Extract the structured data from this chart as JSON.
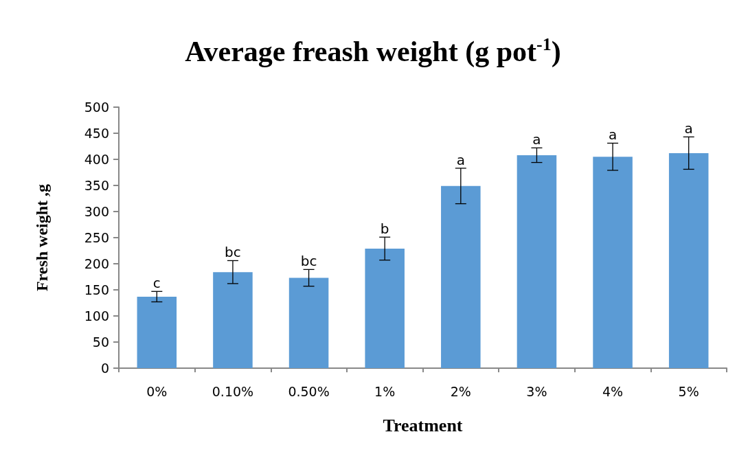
{
  "chart_data": {
    "type": "bar",
    "title": "Average freash weight (g pot$^{-1}$)",
    "xlabel": "Treatment",
    "ylabel": "Fresh weight ,g",
    "categories": [
      "0%",
      "0.10%",
      "0.50%",
      "1%",
      "2%",
      "3%",
      "4%",
      "5%"
    ],
    "values": [
      137,
      184,
      173,
      229,
      349,
      408,
      405,
      412
    ],
    "errors": [
      10,
      22,
      16,
      22,
      34,
      14,
      26,
      31
    ],
    "color": "#5b9bd5",
    "ylim": [
      0,
      500
    ],
    "yticks": [
      0,
      50,
      100,
      150,
      200,
      250,
      300,
      350,
      400,
      450,
      500
    ],
    "grid": false,
    "annotations": [
      {
        "text": "c",
        "x": "0%",
        "y": 147
      },
      {
        "text": "bc",
        "x": "0.10%",
        "y": 206
      },
      {
        "text": "bc",
        "x": "0.50%",
        "y": 189
      },
      {
        "text": "b",
        "x": "1%",
        "y": 251
      },
      {
        "text": "a",
        "x": "2%",
        "y": 383
      },
      {
        "text": "a",
        "x": "3%",
        "y": 422
      },
      {
        "text": "a",
        "x": "4%",
        "y": 431
      },
      {
        "text": "a",
        "x": "5%",
        "y": 443
      }
    ]
  }
}
